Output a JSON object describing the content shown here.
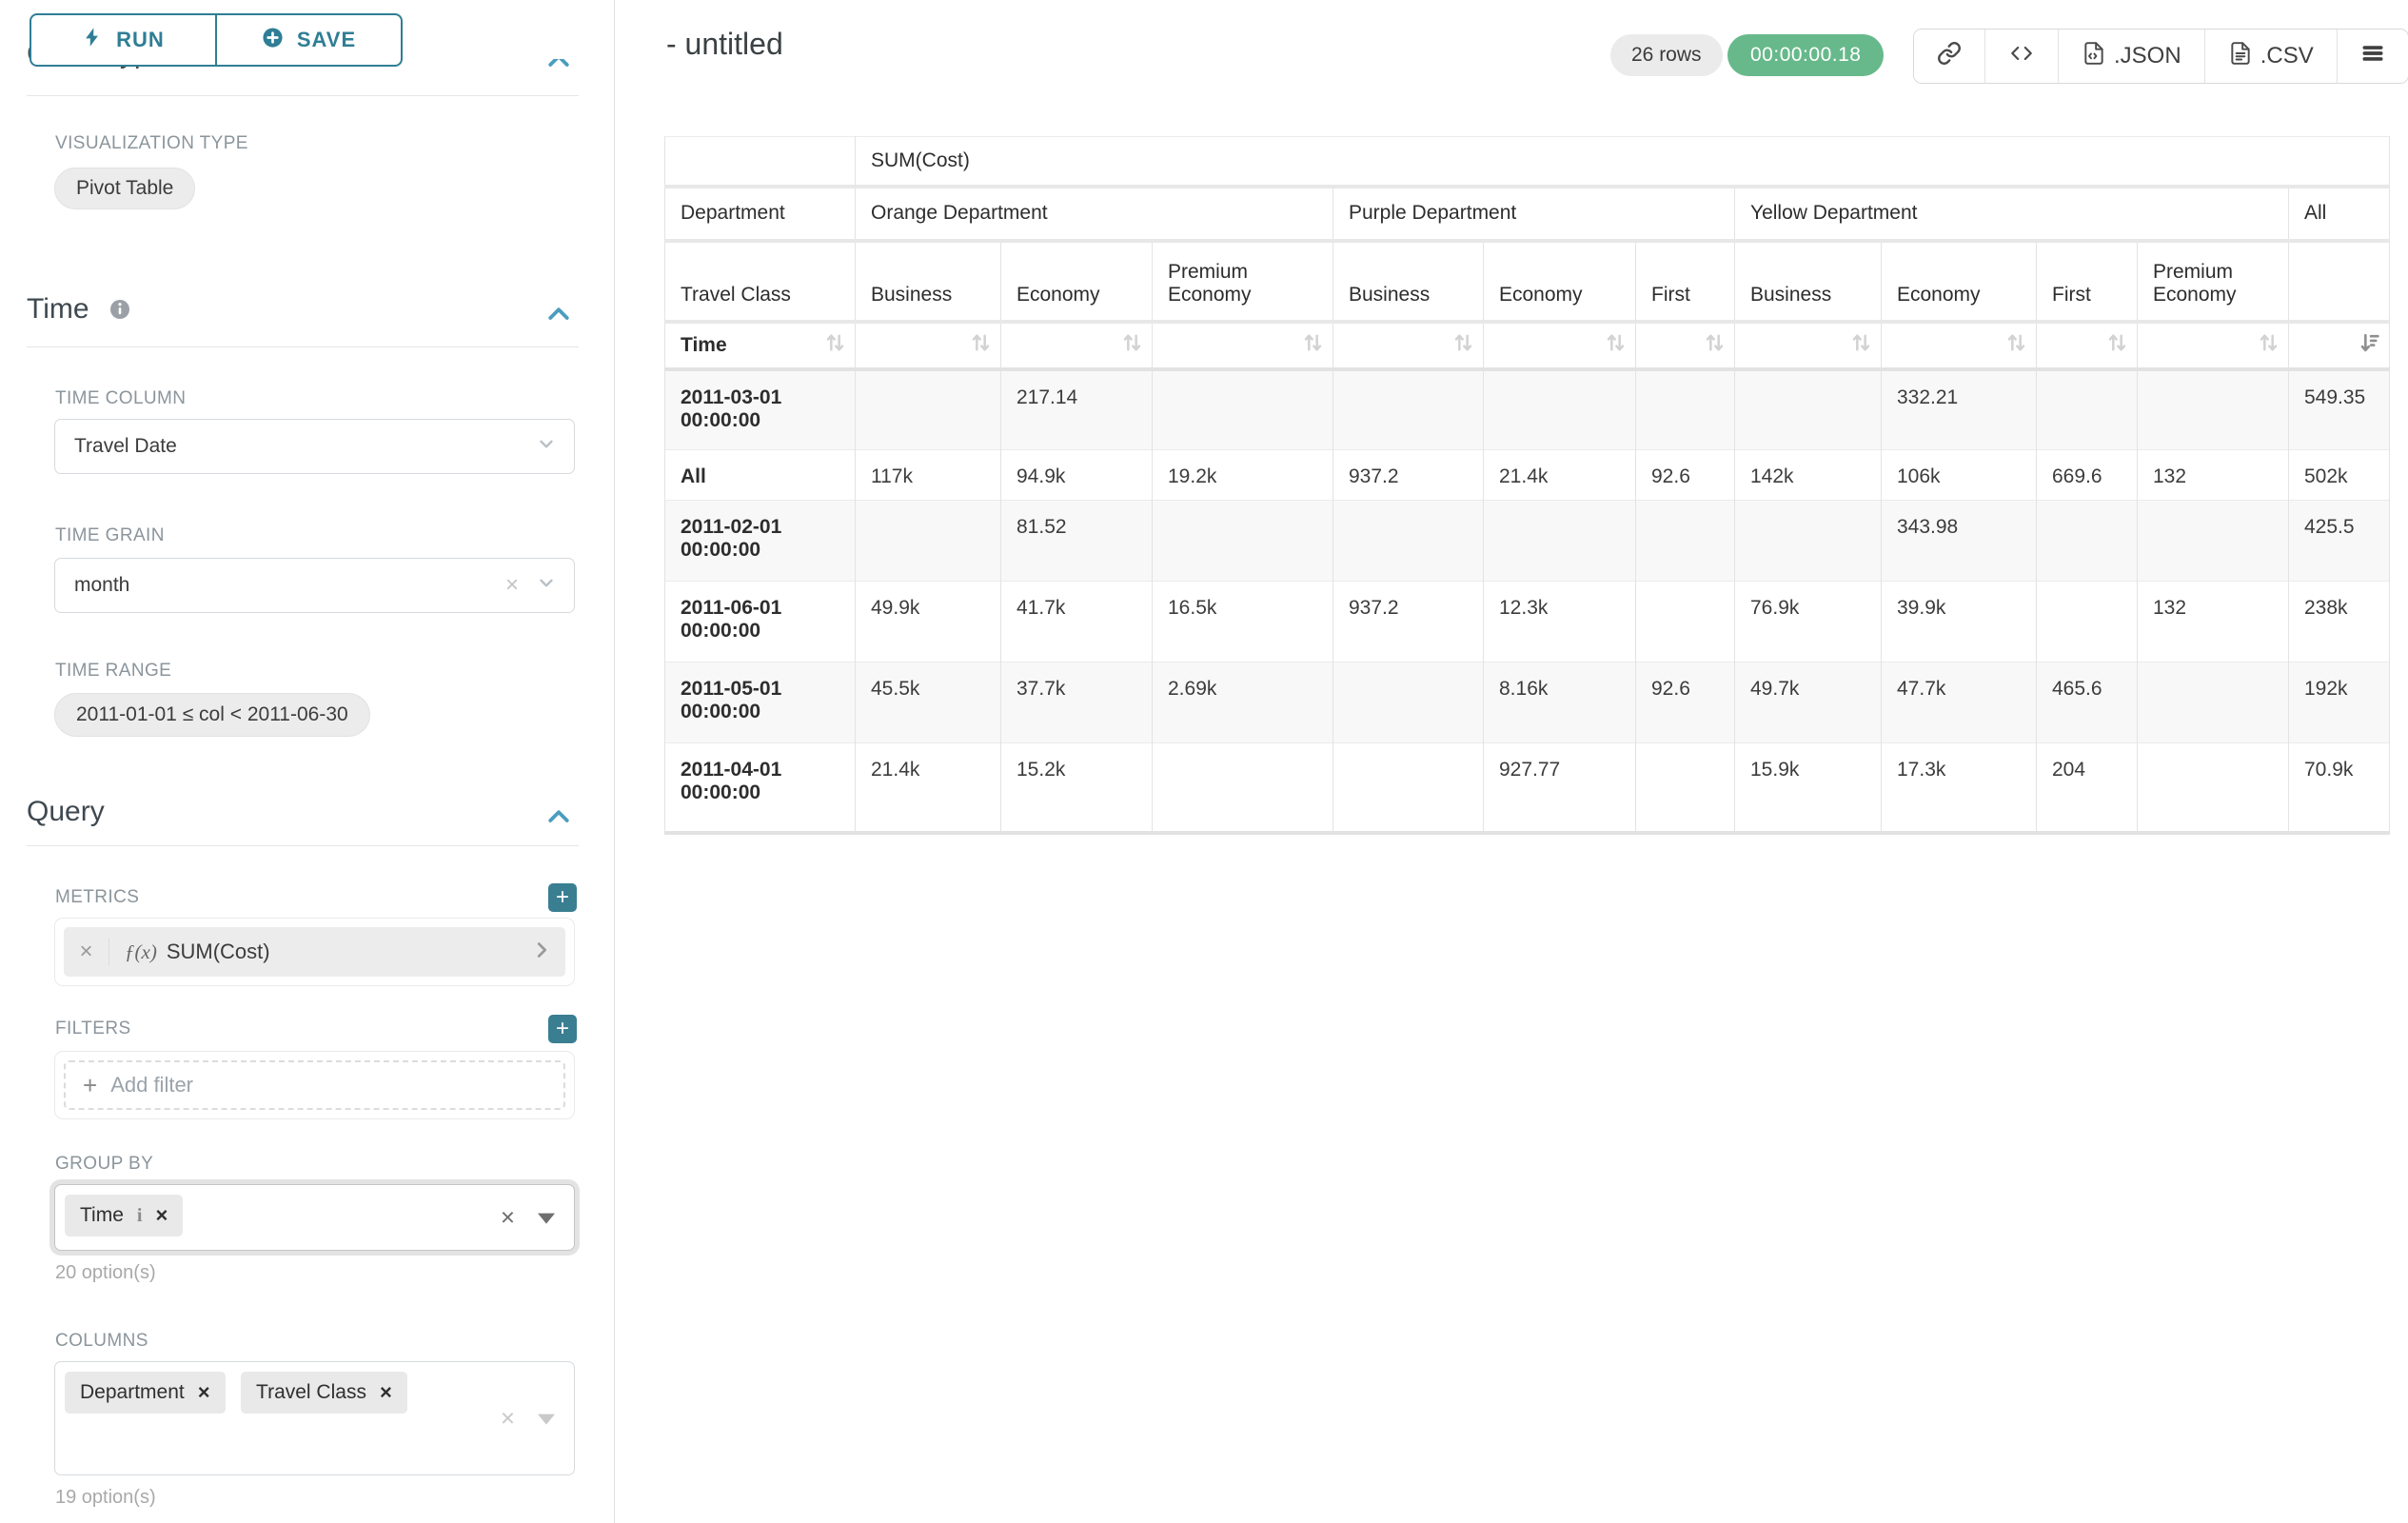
{
  "colors": {
    "accent_teal": "#2f7e95",
    "chevron_blue": "#4a9dbe",
    "success_green": "#67b98b",
    "badge_gray": "#ebebeb"
  },
  "sidebar": {
    "run_label": "RUN",
    "save_label": "SAVE",
    "chart_type_heading": "Chart Type",
    "viz_type_label": "VISUALIZATION TYPE",
    "viz_type_value": "Pivot Table",
    "time_heading": "Time",
    "time_column_label": "TIME COLUMN",
    "time_column_value": "Travel Date",
    "time_grain_label": "TIME GRAIN",
    "time_grain_value": "month",
    "time_range_label": "TIME RANGE",
    "time_range_value": "2011-01-01 ≤ col < 2011-06-30",
    "query_heading": "Query",
    "metrics_label": "METRICS",
    "metric_fx": "ƒ(x)",
    "metric_value": "SUM(Cost)",
    "filters_label": "FILTERS",
    "add_filter_label": "Add filter",
    "group_by_label": "GROUP BY",
    "group_by_tags": [
      "Time"
    ],
    "group_by_hint": "20 option(s)",
    "columns_label": "COLUMNS",
    "columns_tags": [
      "Department",
      "Travel Class"
    ],
    "columns_hint": "19 option(s)"
  },
  "header": {
    "title": "- untitled",
    "rows_badge": "26 rows",
    "timer": "00:00:00.18",
    "json_label": ".JSON",
    "csv_label": ".CSV"
  },
  "pivot": {
    "metric_label": "SUM(Cost)",
    "department_label": "Department",
    "travel_class_label": "Travel Class",
    "time_label": "Time",
    "groups": [
      {
        "label": "Orange Department",
        "cols": [
          "Business",
          "Economy",
          "Premium Economy"
        ]
      },
      {
        "label": "Purple Department",
        "cols": [
          "Business",
          "Economy",
          "First"
        ]
      },
      {
        "label": "Yellow Department",
        "cols": [
          "Business",
          "Economy",
          "First",
          "Premium Economy"
        ]
      },
      {
        "label": "All",
        "cols": [
          ""
        ]
      }
    ],
    "rows": [
      {
        "label": "2011-03-01 00:00:00",
        "cells": [
          "",
          "217.14",
          "",
          "",
          "",
          "",
          "",
          "332.21",
          "",
          "",
          "549.35"
        ]
      },
      {
        "label": "All",
        "cells": [
          "117k",
          "94.9k",
          "19.2k",
          "937.2",
          "21.4k",
          "92.6",
          "142k",
          "106k",
          "669.6",
          "132",
          "502k"
        ]
      },
      {
        "label": "2011-02-01 00:00:00",
        "cells": [
          "",
          "81.52",
          "",
          "",
          "",
          "",
          "",
          "343.98",
          "",
          "",
          "425.5"
        ]
      },
      {
        "label": "2011-06-01 00:00:00",
        "cells": [
          "49.9k",
          "41.7k",
          "16.5k",
          "937.2",
          "12.3k",
          "",
          "76.9k",
          "39.9k",
          "",
          "132",
          "238k"
        ]
      },
      {
        "label": "2011-05-01 00:00:00",
        "cells": [
          "45.5k",
          "37.7k",
          "2.69k",
          "",
          "8.16k",
          "92.6",
          "49.7k",
          "47.7k",
          "465.6",
          "",
          "192k"
        ]
      },
      {
        "label": "2011-04-01 00:00:00",
        "cells": [
          "21.4k",
          "15.2k",
          "",
          "",
          "927.77",
          "",
          "15.9k",
          "17.3k",
          "204",
          "",
          "70.9k"
        ]
      }
    ]
  }
}
